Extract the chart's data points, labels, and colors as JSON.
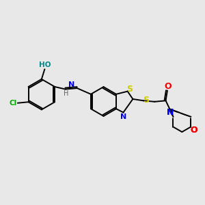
{
  "background_color": "#e8e8e8",
  "colors": {
    "C": "#000000",
    "H": "#606060",
    "N": "#0000ee",
    "O": "#ee0000",
    "S": "#cccc00",
    "Cl": "#00aa00",
    "HO": "#008888"
  },
  "lw": 1.4,
  "figsize": [
    3.0,
    3.0
  ],
  "dpi": 100
}
